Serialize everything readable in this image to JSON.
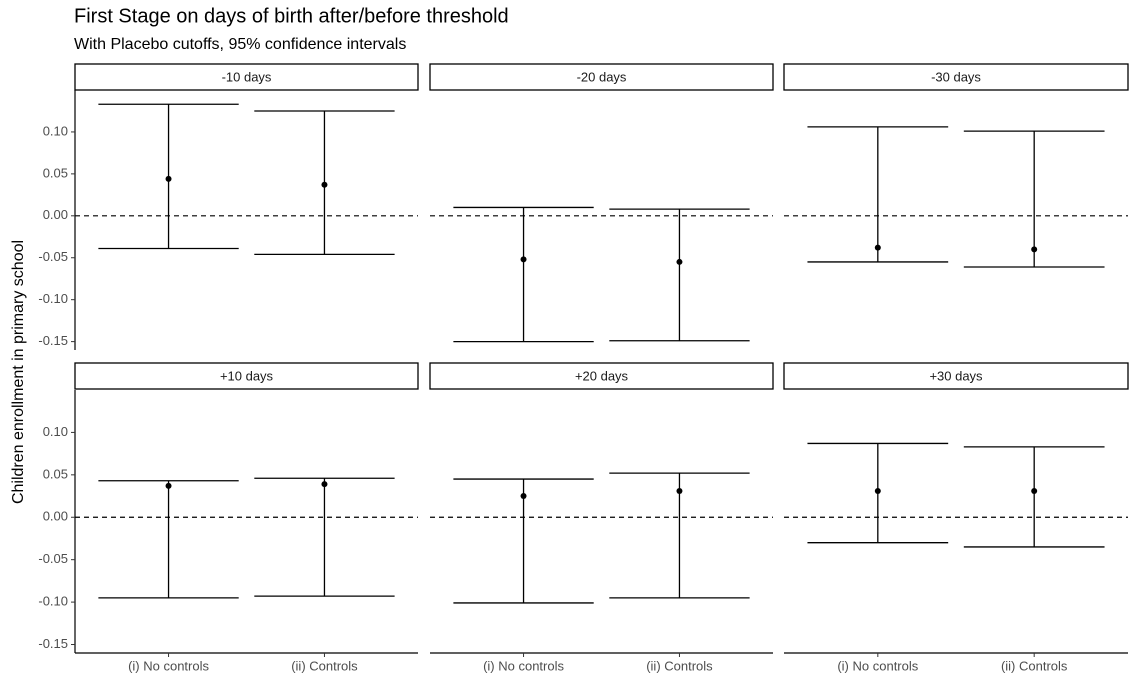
{
  "chart_data": {
    "type": "errorbar",
    "title": "First Stage on days of birth after/before threshold",
    "subtitle": "With Placebo cutoffs, 95% confidence intervals",
    "y_label": "Children enrollment in primary school",
    "categories": [
      "(i) No controls",
      "(ii) Controls"
    ],
    "ylim": [
      -0.16,
      0.15
    ],
    "yticks": [
      {
        "value": -0.15,
        "label": "-0.15"
      },
      {
        "value": -0.1,
        "label": "-0.10"
      },
      {
        "value": -0.05,
        "label": "-0.05"
      },
      {
        "value": 0,
        "label": "0.00"
      },
      {
        "value": 0.05,
        "label": "0.05"
      },
      {
        "value": 0.1,
        "label": "0.10"
      }
    ],
    "reference_line": 0,
    "color": "#000000",
    "panels": [
      {
        "label": "-10 days",
        "values": [
          0.044,
          0.037
        ],
        "lower": [
          -0.039,
          -0.046
        ],
        "upper": [
          0.133,
          0.125
        ]
      },
      {
        "label": "-20 days",
        "values": [
          -0.052,
          -0.055
        ],
        "lower": [
          -0.15,
          -0.149
        ],
        "upper": [
          0.01,
          0.008
        ]
      },
      {
        "label": "-30 days",
        "values": [
          -0.038,
          -0.04
        ],
        "lower": [
          -0.055,
          -0.061
        ],
        "upper": [
          0.106,
          0.101
        ]
      },
      {
        "label": "+10 days",
        "values": [
          0.037,
          0.039
        ],
        "lower": [
          -0.095,
          -0.093
        ],
        "upper": [
          0.043,
          0.046
        ]
      },
      {
        "label": "+20 days",
        "values": [
          0.025,
          0.031
        ],
        "lower": [
          -0.101,
          -0.095
        ],
        "upper": [
          0.045,
          0.052
        ]
      },
      {
        "label": "+30 days",
        "values": [
          0.031,
          0.031
        ],
        "lower": [
          -0.03,
          -0.035
        ],
        "upper": [
          0.087,
          0.083
        ]
      }
    ]
  }
}
